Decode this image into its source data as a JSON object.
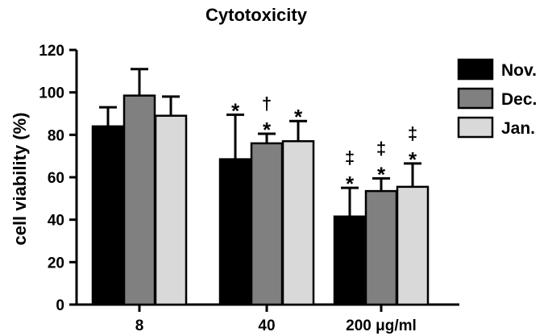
{
  "chart_data": {
    "type": "bar",
    "title": "Cytotoxicity",
    "ylabel": "cell viability  (%)",
    "xlabel": "",
    "ylim": [
      0,
      120
    ],
    "yticks": [
      0,
      20,
      40,
      60,
      80,
      100,
      120
    ],
    "categories": [
      "8",
      "40",
      "200 μg/ml"
    ],
    "legend_position": "right",
    "series": [
      {
        "name": "Nov.",
        "color": "#000000",
        "values": [
          84,
          68.5,
          41.5
        ],
        "errors": [
          9,
          21,
          13.5
        ],
        "annotations": [
          "",
          "*",
          "‡\n*"
        ]
      },
      {
        "name": "Dec.",
        "color": "#808080",
        "values": [
          98.5,
          76,
          53.5
        ],
        "errors": [
          12.5,
          4.5,
          6
        ],
        "annotations": [
          "",
          "†\n*",
          "‡\n*"
        ]
      },
      {
        "name": "Jan.",
        "color": "#d9d9d9",
        "values": [
          89,
          77,
          55.5
        ],
        "errors": [
          9,
          9.5,
          11
        ],
        "annotations": [
          "",
          "*",
          "‡\n*"
        ]
      }
    ]
  }
}
